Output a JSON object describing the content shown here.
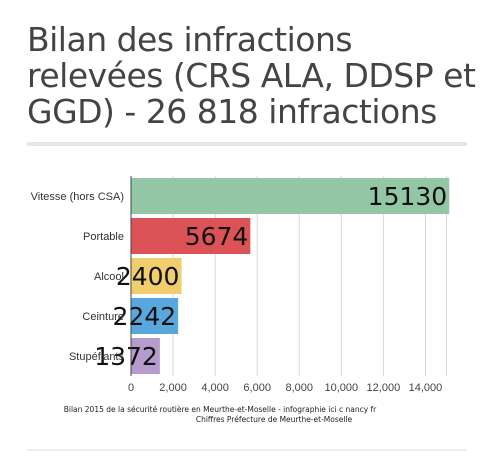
{
  "chart_data": {
    "type": "bar",
    "orientation": "horizontal",
    "title": "Bilan des infractions relevées (CRS ALA, DDSP et GGD) - 26 818 infractions",
    "categories": [
      "Vitesse (hors CSA)",
      "Portable",
      "Alcool",
      "Ceinture",
      "Stupéfiants"
    ],
    "values": [
      15130,
      5674,
      2400,
      2242,
      1372
    ],
    "data_labels": [
      "15130",
      "5674",
      "2400",
      "2242",
      "1372"
    ],
    "colors": [
      "#93c6a5",
      "#db5356",
      "#f0cd6d",
      "#58a8dd",
      "#b59ccc"
    ],
    "xlim": [
      0,
      15500
    ],
    "x_ticks": [
      0,
      2000,
      4000,
      6000,
      8000,
      10000,
      12000,
      14000
    ],
    "x_tick_labels": [
      "0",
      "2,000",
      "4,000",
      "6,000",
      "8,000",
      "10,000",
      "12,000",
      "14,000"
    ],
    "grid": true,
    "xlabel": "",
    "ylabel": ""
  },
  "source": {
    "line1": "Bilan 2015 de la sécurité routière en Meurthe-et-Moselle - infographie ici c nancy fr",
    "line2": "Chiffres Préfecture de Meurthe-et-Moselle"
  }
}
